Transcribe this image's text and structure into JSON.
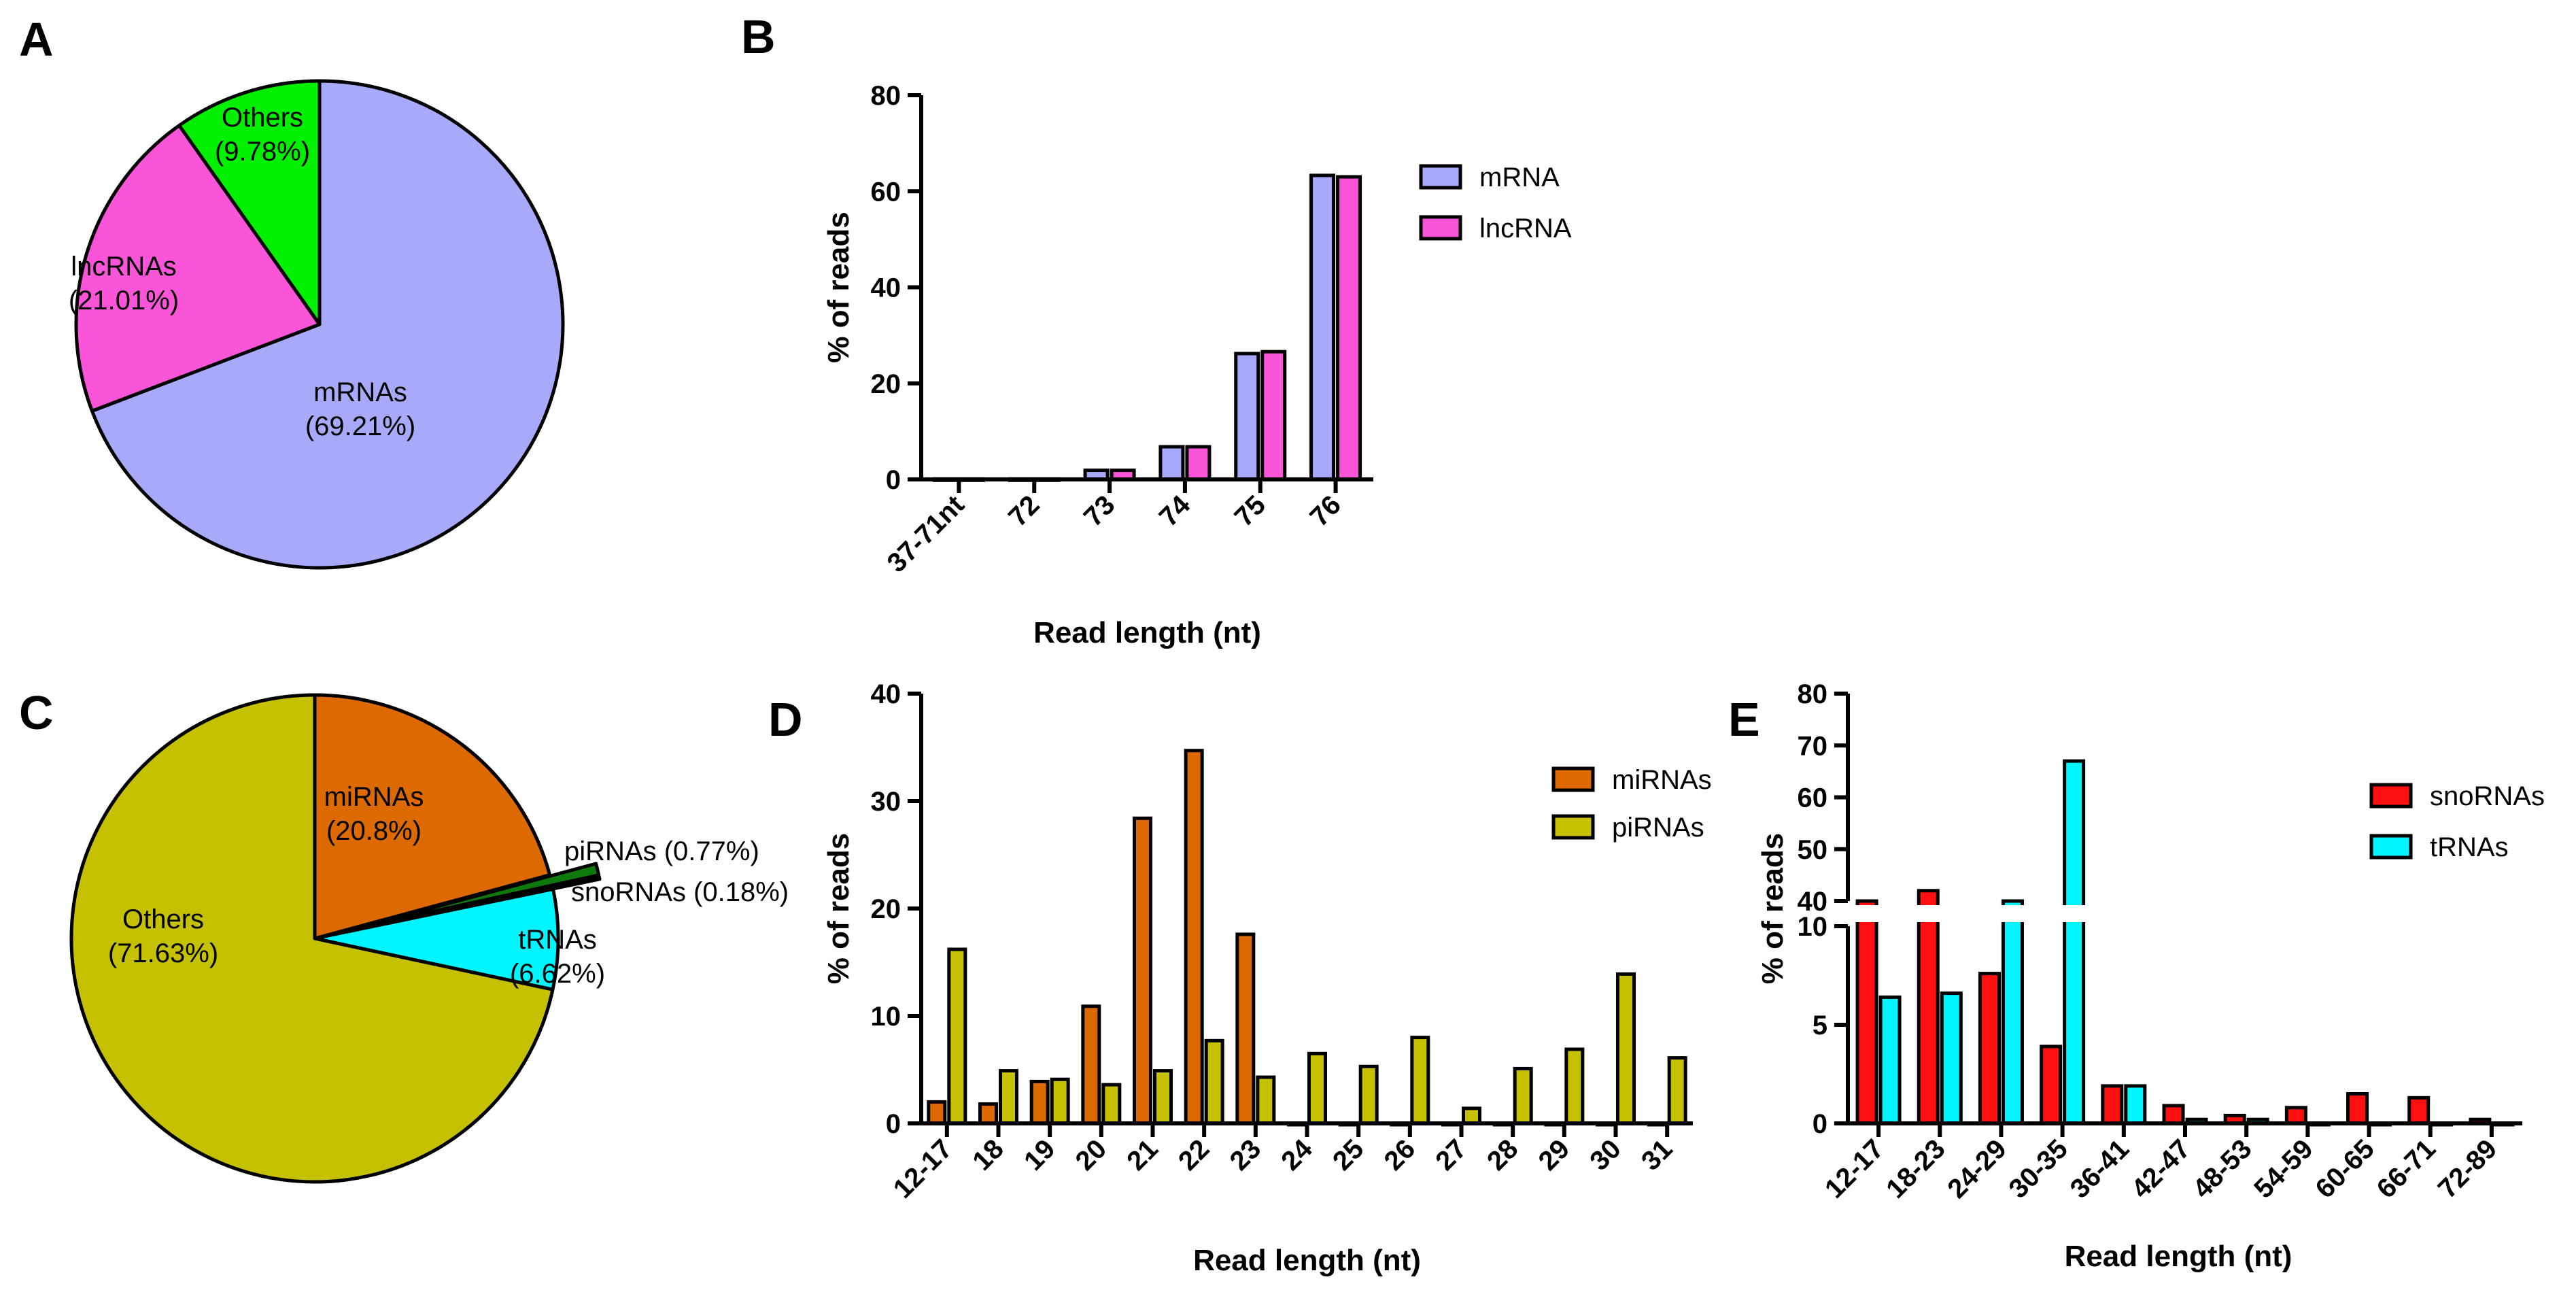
{
  "panels": {
    "A": "A",
    "B": "B",
    "C": "C",
    "D": "D",
    "E": "E"
  },
  "chart_data": [
    {
      "id": "A",
      "type": "pie",
      "title": "",
      "slices": [
        {
          "name": "mRNAs",
          "label": "mRNAs",
          "pct_text": "(69.21%)",
          "value": 69.21,
          "color": "#a8aaf9"
        },
        {
          "name": "lncRNAs",
          "label": "lncRNAs",
          "pct_text": "(21.01%)",
          "value": 21.01,
          "color": "#fa55d8"
        },
        {
          "name": "Others",
          "label": "Others",
          "pct_text": "(9.78%)",
          "value": 9.78,
          "color": "#00f000"
        }
      ]
    },
    {
      "id": "B",
      "type": "bar",
      "categories": [
        "37-71nt",
        "72",
        "73",
        "74",
        "75",
        "76"
      ],
      "series": [
        {
          "name": "mRNA",
          "color": "#a8aaf9",
          "values": [
            0.1,
            0.1,
            1.9,
            6.8,
            26.2,
            63.3
          ]
        },
        {
          "name": "lncRNA",
          "color": "#fa55d8",
          "values": [
            0.1,
            0.1,
            1.9,
            6.8,
            26.6,
            63.0
          ]
        }
      ],
      "xlabel": "Read length (nt)",
      "ylabel": "% of reads",
      "ylim": [
        0,
        80
      ],
      "yticks": [
        0,
        20,
        40,
        60,
        80
      ]
    },
    {
      "id": "C",
      "type": "pie",
      "title": "",
      "slices": [
        {
          "name": "miRNAs",
          "label": "miRNAs",
          "pct_text": "(20.8%)",
          "value": 20.8,
          "color": "#dc6a00"
        },
        {
          "name": "piRNAs",
          "label": "piRNAs (0.77%)",
          "value": 0.77,
          "color": "#0e7a0e",
          "exploded": true
        },
        {
          "name": "snoRNAs",
          "label": "snoRNAs (0.18%)",
          "value": 0.18,
          "color": "#ff2020",
          "exploded": true
        },
        {
          "name": "tRNAs",
          "label": "tRNAs",
          "pct_text": "(6.62%)",
          "value": 6.62,
          "color": "#00f5ff"
        },
        {
          "name": "Others",
          "label": "Others",
          "pct_text": "(71.63%)",
          "value": 71.63,
          "color": "#c5c000"
        }
      ]
    },
    {
      "id": "D",
      "type": "bar",
      "categories": [
        "12-17",
        "18",
        "19",
        "20",
        "21",
        "22",
        "23",
        "24",
        "25",
        "26",
        "27",
        "28",
        "29",
        "30",
        "31"
      ],
      "series": [
        {
          "name": "miRNAs",
          "color": "#dc6a00",
          "values": [
            2.0,
            1.8,
            3.9,
            10.9,
            28.4,
            34.7,
            17.6,
            0,
            0,
            0,
            0,
            0,
            0,
            0,
            0
          ]
        },
        {
          "name": "piRNAs",
          "color": "#c5c000",
          "values": [
            16.2,
            4.9,
            4.1,
            3.6,
            4.9,
            7.7,
            4.3,
            6.5,
            5.3,
            8.0,
            1.4,
            5.1,
            6.9,
            13.9,
            6.1
          ]
        }
      ],
      "xlabel": "Read length (nt)",
      "ylabel": "% of reads",
      "ylim": [
        0,
        40
      ],
      "yticks": [
        0,
        10,
        20,
        30,
        40
      ]
    },
    {
      "id": "E",
      "type": "bar",
      "categories": [
        "12-17",
        "18-23",
        "24-29",
        "30-35",
        "36-41",
        "42-47",
        "48-53",
        "54-59",
        "60-65",
        "66-71",
        "72-89"
      ],
      "series": [
        {
          "name": "snoRNAs",
          "color": "#ff1010",
          "values": [
            11.0,
            42.0,
            7.6,
            3.9,
            1.9,
            0.9,
            0.4,
            0.8,
            1.5,
            1.3,
            0.2
          ]
        },
        {
          "name": "tRNAs",
          "color": "#00f5ff",
          "values": [
            6.4,
            6.6,
            10.9,
            67.0,
            1.9,
            0.2,
            0.2,
            0,
            0,
            0,
            0
          ]
        }
      ],
      "xlabel": "Read length (nt)",
      "ylabel": "% of reads",
      "y_break": [
        10,
        40
      ],
      "lower_ylim": [
        0,
        10
      ],
      "upper_ylim": [
        40,
        80
      ],
      "yticks_lower": [
        0,
        5,
        10
      ],
      "yticks_upper": [
        40,
        50,
        60,
        70,
        80
      ]
    }
  ]
}
